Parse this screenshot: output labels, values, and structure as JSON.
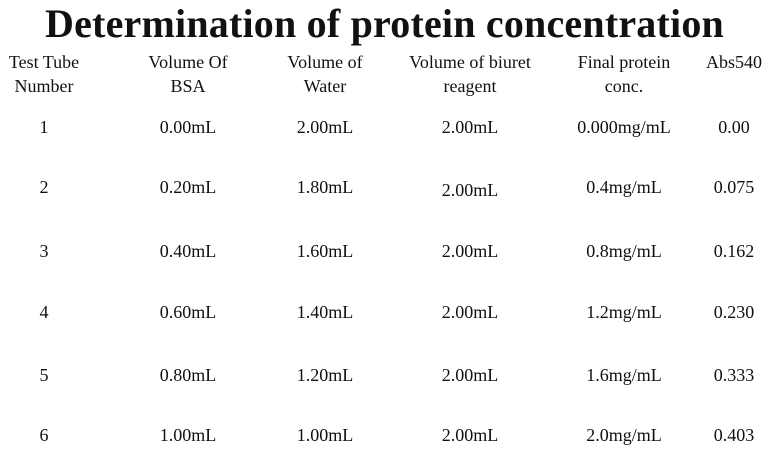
{
  "title": "Determination of protein concentration",
  "headers": [
    "Test Tube\nNumber",
    "Volume Of\nBSA",
    "Volume of\nWater",
    "Volume of biuret\nreagent",
    "Final protein\nconc.",
    "Abs540"
  ],
  "rows": [
    [
      "1",
      "0.00mL",
      "2.00mL",
      "2.00mL",
      "0.000mg/mL",
      "0.00"
    ],
    [
      "2",
      "0.20mL",
      "1.80mL",
      "2.00mL",
      "0.4mg/mL",
      "0.075"
    ],
    [
      "3",
      "0.40mL",
      "1.60mL",
      "2.00mL",
      "0.8mg/mL",
      "0.162"
    ],
    [
      "4",
      "0.60mL",
      "1.40mL",
      "2.00mL",
      "1.2mg/mL",
      "0.230"
    ],
    [
      "5",
      "0.80mL",
      "1.20mL",
      "2.00mL",
      "1.6mg/mL",
      "0.333"
    ],
    [
      "6",
      "1.00mL",
      "1.00mL",
      "2.00mL",
      "2.0mg/mL",
      "0.403"
    ]
  ]
}
